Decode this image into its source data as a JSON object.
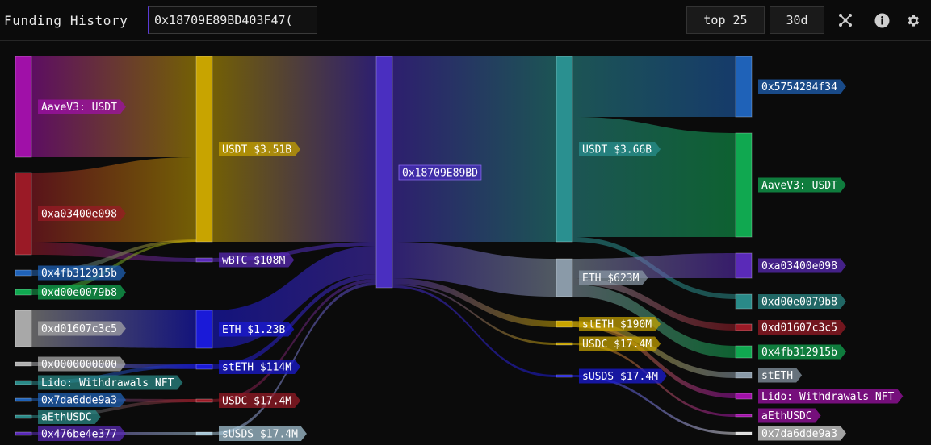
{
  "header": {
    "title": "Funding History",
    "address_value": "0x18709E89BD403F47(",
    "top_button": "top 25",
    "period_button": "30d",
    "icons": [
      "graph-icon",
      "info-icon",
      "gear-icon"
    ]
  },
  "sankey": {
    "center": {
      "label": "0x18709E89BD",
      "color": "#4a2fc0"
    },
    "sources": [
      {
        "label": "AaveV3: USDT",
        "color": "#a010a8"
      },
      {
        "label": "0xa03400e098",
        "color": "#9a1a26"
      },
      {
        "label": "0x4fb312915b",
        "color": "#1f62b8"
      },
      {
        "label": "0xd00e0079b8",
        "color": "#10a850"
      },
      {
        "label": "0xd01607c3c5",
        "color": "#a8a8a8"
      },
      {
        "label": "0x0000000000",
        "color": "#b0b0b0"
      },
      {
        "label": "Lido: Withdrawals NFT",
        "color": "#2a8a88"
      },
      {
        "label": "0x7da6dde9a3",
        "color": "#1f62b8"
      },
      {
        "label": "aEthUSDC",
        "color": "#2a8a88"
      },
      {
        "label": "0x476be4e377",
        "color": "#5a2ab8"
      }
    ],
    "in_tokens": [
      {
        "label": "USDT $3.51B",
        "color": "#c8a400"
      },
      {
        "label": "wBTC $108M",
        "color": "#5a2ab8"
      },
      {
        "label": "ETH $1.23B",
        "color": "#1a1ad8"
      },
      {
        "label": "stETH $114M",
        "color": "#1a1ad8"
      },
      {
        "label": "USDC $17.4M",
        "color": "#9a1a26"
      },
      {
        "label": "sUSDS $17.4M",
        "color": "#a8c8d8"
      }
    ],
    "out_tokens": [
      {
        "label": "USDT $3.66B",
        "color": "#2a9090"
      },
      {
        "label": "ETH $623M",
        "color": "#8a9aa8"
      },
      {
        "label": "stETH $190M",
        "color": "#c8a400"
      },
      {
        "label": "USDC $17.4M",
        "color": "#c8a400"
      },
      {
        "label": "sUSDS $17.4M",
        "color": "#1a1ad8"
      }
    ],
    "destinations": [
      {
        "label": "0x5754284f34",
        "color": "#1f62b8"
      },
      {
        "label": "AaveV3: USDT",
        "color": "#10a850"
      },
      {
        "label": "0xa03400e098",
        "color": "#5a2ab8"
      },
      {
        "label": "0xd00e0079b8",
        "color": "#2a8a88"
      },
      {
        "label": "0xd01607c3c5",
        "color": "#9a1a26"
      },
      {
        "label": "0x4fb312915b",
        "color": "#10a850"
      },
      {
        "label": "stETH",
        "color": "#8a9aa8"
      },
      {
        "label": "Lido: Withdrawals NFT",
        "color": "#a010a8"
      },
      {
        "label": "aEthUSDC",
        "color": "#a010a8"
      },
      {
        "label": "0x7da6dde9a3",
        "color": "#dddddd"
      }
    ]
  }
}
